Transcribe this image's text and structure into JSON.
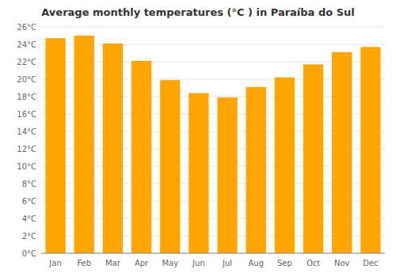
{
  "chart_data": {
    "type": "bar",
    "title": "Average monthly temperatures (°C ) in Paraíba do Sul",
    "categories": [
      "Jan",
      "Feb",
      "Mar",
      "Apr",
      "May",
      "Jun",
      "Jul",
      "Aug",
      "Sep",
      "Oct",
      "Nov",
      "Dec"
    ],
    "values": [
      24.7,
      25.0,
      24.1,
      22.1,
      19.9,
      18.4,
      17.9,
      19.1,
      20.2,
      21.7,
      23.1,
      23.7
    ],
    "color": "#FFA500",
    "ylim": [
      0,
      26
    ],
    "yticks": [
      {
        "value": 0,
        "label": "0°C"
      },
      {
        "value": 2,
        "label": "2°C"
      },
      {
        "value": 4,
        "label": "4°C"
      },
      {
        "value": 6,
        "label": "6°C"
      },
      {
        "value": 8,
        "label": "8°C"
      },
      {
        "value": 10,
        "label": "10°C"
      },
      {
        "value": 12,
        "label": "12°C"
      },
      {
        "value": 14,
        "label": "14°C"
      },
      {
        "value": 16,
        "label": "16°C"
      },
      {
        "value": 18,
        "label": "18°C"
      },
      {
        "value": 20,
        "label": "20°C"
      },
      {
        "value": 22,
        "label": "22°C"
      },
      {
        "value": 24,
        "label": "24°C"
      },
      {
        "value": 26,
        "label": "26°C"
      }
    ],
    "grid": true
  }
}
